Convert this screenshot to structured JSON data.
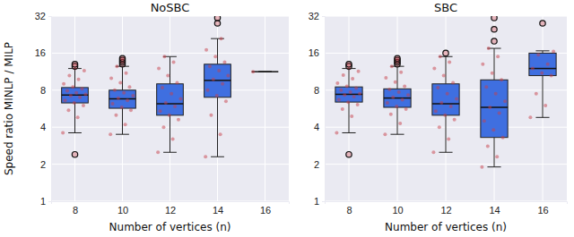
{
  "chart_data": [
    {
      "type": "box",
      "title": "NoSBC",
      "x_label": "Number of vertices (n)",
      "y_label": "Speed ratio MINLP / MILP",
      "categories": [
        8,
        10,
        12,
        14,
        16
      ],
      "boxes": [
        {
          "min": 3.6,
          "q1": 6.3,
          "median": 7.3,
          "q3": 8.4,
          "max": 12,
          "outliers": [
            12.5,
            13,
            2.4
          ]
        },
        {
          "min": 3.5,
          "q1": 5.7,
          "median": 6.8,
          "q3": 8.0,
          "max": 12.5,
          "outliers": [
            13,
            13.5,
            14,
            14.5
          ]
        },
        {
          "min": 2.5,
          "q1": 5.0,
          "median": 6.2,
          "q3": 9.0,
          "max": 15,
          "outliers": []
        },
        {
          "min": 2.3,
          "q1": 7.0,
          "median": 9.6,
          "q3": 13,
          "max": 21,
          "outliers": [
            28,
            31
          ]
        },
        {
          "min": 11.3,
          "q1": 11.3,
          "median": 11.3,
          "q3": 11.3,
          "max": 11.3,
          "outliers": []
        }
      ],
      "points": [
        [
          3.6,
          4.8,
          5.5,
          6,
          6.3,
          6.6,
          7,
          7.2,
          7.4,
          7.6,
          7.9,
          8.2,
          8.5,
          9,
          9.8,
          10.5,
          11.5,
          12
        ],
        [
          3.5,
          4.2,
          5,
          5.5,
          5.8,
          6.2,
          6.6,
          6.9,
          7.2,
          7.6,
          8,
          8.5,
          9.2,
          10,
          11,
          12.5
        ],
        [
          2.5,
          3.2,
          4,
          4.6,
          5,
          5.4,
          5.9,
          6.3,
          6.8,
          7.5,
          8.4,
          9.2,
          10.5,
          12,
          13.5,
          15
        ],
        [
          2.3,
          3.5,
          5,
          6.5,
          7.2,
          8,
          9,
          9.8,
          10.5,
          11.5,
          12.5,
          13.5,
          15,
          17,
          21
        ],
        [
          11.3
        ]
      ],
      "color": "#3f6fe0",
      "log": "y",
      "grid": true,
      "ylim": [
        1,
        32
      ],
      "yticks": [
        1,
        2,
        4,
        8,
        16,
        32
      ]
    },
    {
      "type": "box",
      "title": "SBC",
      "x_label": "Number of vertices (n)",
      "categories": [
        8,
        10,
        12,
        14,
        16
      ],
      "boxes": [
        {
          "min": 3.6,
          "q1": 6.4,
          "median": 7.4,
          "q3": 8.5,
          "max": 12,
          "outliers": [
            12.5,
            13,
            2.4
          ]
        },
        {
          "min": 3.5,
          "q1": 5.8,
          "median": 6.9,
          "q3": 8.2,
          "max": 12.5,
          "outliers": [
            13,
            13.5,
            14,
            14.5
          ]
        },
        {
          "min": 2.5,
          "q1": 5.0,
          "median": 6.2,
          "q3": 9.0,
          "max": 15,
          "outliers": [
            16
          ]
        },
        {
          "min": 1.9,
          "q1": 3.3,
          "median": 5.8,
          "q3": 9.7,
          "max": 17.5,
          "outliers": [
            20,
            25,
            31
          ]
        },
        {
          "min": 4.8,
          "q1": 10.5,
          "median": 12,
          "q3": 16,
          "max": 16.7,
          "outliers": [
            28
          ]
        }
      ],
      "points": [
        [
          3.6,
          4.9,
          5.6,
          6.1,
          6.4,
          6.7,
          7.1,
          7.3,
          7.5,
          7.7,
          8,
          8.3,
          8.6,
          9.1,
          9.9,
          10.6,
          11.4,
          12
        ],
        [
          3.5,
          4.3,
          5.1,
          5.6,
          5.9,
          6.3,
          6.7,
          7,
          7.3,
          7.7,
          8.1,
          8.6,
          9.3,
          10.1,
          11.2,
          12.5
        ],
        [
          2.5,
          3.2,
          4,
          4.6,
          5,
          5.4,
          5.9,
          6.3,
          6.8,
          7.5,
          8.4,
          9.2,
          10.5,
          12,
          13.5,
          15
        ],
        [
          1.9,
          2.3,
          2.8,
          3.3,
          3.8,
          4.5,
          5.2,
          5.8,
          6.5,
          7.5,
          8.5,
          9.7,
          11,
          13,
          15,
          17.5
        ],
        [
          4.8,
          6,
          7.5,
          10.5,
          11,
          12,
          13,
          15.5,
          16.5
        ]
      ],
      "color": "#3f6fe0",
      "log": "y",
      "grid": true,
      "ylim": [
        1,
        32
      ],
      "yticks": [
        1,
        2,
        4,
        8,
        16,
        32
      ]
    }
  ]
}
